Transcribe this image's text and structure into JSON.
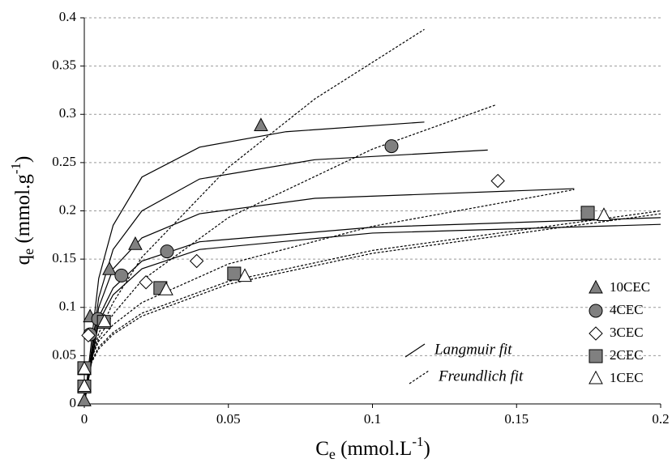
{
  "chart_data": {
    "type": "scatter",
    "x_label": {
      "main": "C",
      "sub": "e",
      "unit": " (mmol.L",
      "sup": "-1",
      "end": ")"
    },
    "y_label": {
      "main": "q",
      "sub": "e",
      "unit": " (mmol.g",
      "sup": "-1",
      "end": ")"
    },
    "xlim": [
      0,
      0.2
    ],
    "xticks": [
      0,
      0.05,
      0.1,
      0.15,
      0.2
    ],
    "ylim": [
      0,
      0.4
    ],
    "yticks": [
      0,
      0.05,
      0.1,
      0.15,
      0.2,
      0.25,
      0.3,
      0.35,
      0.4
    ],
    "grid": true,
    "series": [
      {
        "name": "10CEC",
        "marker": "triangle",
        "color": "#808080",
        "x": [
          0,
          0.002,
          0.0087,
          0.0177,
          0.0613
        ],
        "values": [
          0.003,
          0.09,
          0.139,
          0.165,
          0.288
        ]
      },
      {
        "name": "4CEC",
        "marker": "circle",
        "color": "#808080",
        "x": [
          0.002,
          0.0048,
          0.0129,
          0.0287,
          0.1066
        ],
        "values": [
          0.072,
          0.088,
          0.133,
          0.158,
          0.267
        ]
      },
      {
        "name": "3CEC",
        "marker": "diamond",
        "color": "#ffffff",
        "x": [
          0.0014,
          0.0214,
          0.039,
          0.1435
        ],
        "values": [
          0.071,
          0.126,
          0.148,
          0.231
        ]
      },
      {
        "name": "2CEC",
        "marker": "square",
        "color": "#808080",
        "x": [
          0,
          0,
          0.0068,
          0.0264,
          0.052,
          0.1747
        ],
        "values": [
          0.018,
          0.037,
          0.085,
          0.12,
          0.135,
          0.198
        ]
      },
      {
        "name": "1CEC",
        "marker": "triangle",
        "color": "#ffffff",
        "x": [
          0,
          0,
          0.007,
          0.0284,
          0.0557,
          0.1803
        ],
        "values": [
          0.018,
          0.036,
          0.085,
          0.118,
          0.132,
          0.195
        ]
      }
    ],
    "fit_legend": [
      {
        "label": "Langmuir fit",
        "line": "solid"
      },
      {
        "label": "Freundlich fit",
        "line": "dotted"
      }
    ],
    "fits": [
      {
        "line": "solid",
        "x": [
          0,
          0.005,
          0.01,
          0.02,
          0.04,
          0.07,
          0.118
        ],
        "values": [
          0,
          0.13,
          0.185,
          0.235,
          0.266,
          0.282,
          0.292
        ]
      },
      {
        "line": "solid",
        "x": [
          0,
          0.005,
          0.01,
          0.02,
          0.04,
          0.08,
          0.14
        ],
        "values": [
          0,
          0.11,
          0.16,
          0.2,
          0.233,
          0.253,
          0.263
        ]
      },
      {
        "line": "solid",
        "x": [
          0,
          0.005,
          0.01,
          0.02,
          0.04,
          0.08,
          0.17
        ],
        "values": [
          0,
          0.1,
          0.14,
          0.172,
          0.197,
          0.213,
          0.223
        ]
      },
      {
        "line": "solid",
        "x": [
          0,
          0.005,
          0.01,
          0.02,
          0.04,
          0.1,
          0.2
        ],
        "values": [
          0,
          0.09,
          0.12,
          0.148,
          0.168,
          0.183,
          0.193
        ]
      },
      {
        "line": "solid",
        "x": [
          0,
          0.005,
          0.01,
          0.02,
          0.04,
          0.1,
          0.2
        ],
        "values": [
          0,
          0.085,
          0.113,
          0.14,
          0.16,
          0.177,
          0.186
        ]
      },
      {
        "line": "dotted",
        "x": [
          0.001,
          0.005,
          0.01,
          0.02,
          0.05,
          0.08,
          0.118
        ],
        "values": [
          0.03,
          0.073,
          0.105,
          0.152,
          0.245,
          0.316,
          0.388
        ]
      },
      {
        "line": "dotted",
        "x": [
          0.001,
          0.005,
          0.01,
          0.02,
          0.05,
          0.1,
          0.143
        ],
        "values": [
          0.033,
          0.068,
          0.093,
          0.128,
          0.193,
          0.264,
          0.31
        ]
      },
      {
        "line": "dotted",
        "x": [
          0.001,
          0.005,
          0.01,
          0.02,
          0.05,
          0.1,
          0.17
        ],
        "values": [
          0.037,
          0.065,
          0.082,
          0.105,
          0.145,
          0.184,
          0.222
        ]
      },
      {
        "line": "dotted",
        "x": [
          0.001,
          0.005,
          0.01,
          0.02,
          0.05,
          0.1,
          0.2
        ],
        "values": [
          0.035,
          0.059,
          0.074,
          0.094,
          0.127,
          0.159,
          0.2
        ]
      },
      {
        "line": "dotted",
        "x": [
          0.001,
          0.005,
          0.01,
          0.02,
          0.05,
          0.1,
          0.2
        ],
        "values": [
          0.034,
          0.057,
          0.072,
          0.091,
          0.124,
          0.156,
          0.197
        ]
      }
    ]
  }
}
